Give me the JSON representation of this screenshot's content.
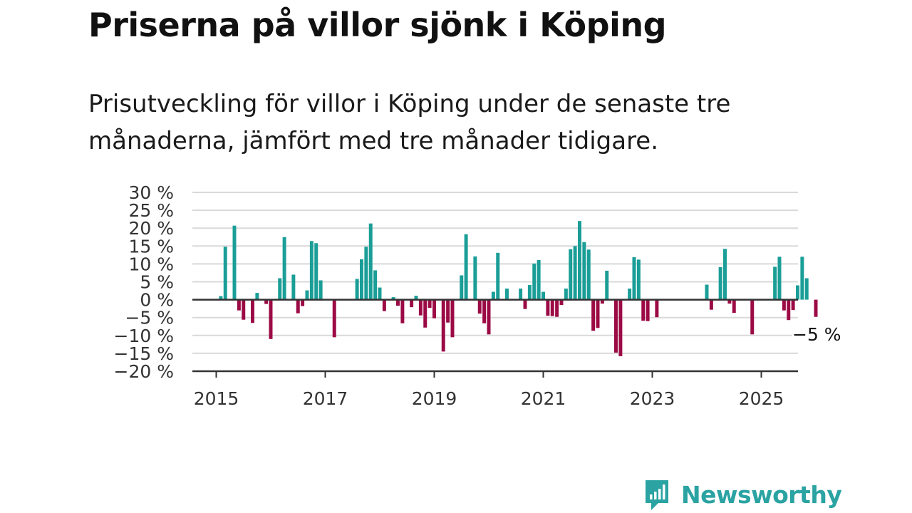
{
  "title": "Priserna på villor sjönk i Köping",
  "subtitle": "Prisutveckling för villor i Köping under de senaste tre månaderna, jämfört med tre månader tidigare.",
  "brand": {
    "name": "Newsworthy",
    "color": "#2aa3a2"
  },
  "colors": {
    "positive": "#1a9e97",
    "negative": "#9c0a45",
    "grid": "#d9d9d9",
    "axis": "#333333"
  },
  "chart_data": {
    "type": "bar",
    "x_unit": "month",
    "start_month": "2015-01",
    "ylim": [
      -20,
      30
    ],
    "y_ticks": [
      {
        "v": 30,
        "label": "30 %"
      },
      {
        "v": 25,
        "label": "25 %"
      },
      {
        "v": 20,
        "label": "20 %"
      },
      {
        "v": 15,
        "label": "15 %"
      },
      {
        "v": 10,
        "label": "10 %"
      },
      {
        "v": 5,
        "label": "5 %"
      },
      {
        "v": 0,
        "label": "0 %"
      },
      {
        "v": -5,
        "label": "−5 %"
      },
      {
        "v": -10,
        "label": "−10 %"
      },
      {
        "v": -15,
        "label": "−15 %"
      },
      {
        "v": -20,
        "label": "−20 %"
      }
    ],
    "x_ticks": [
      "2015",
      "2017",
      "2019",
      "2021",
      "2023",
      "2025"
    ],
    "grid": true,
    "annotation": "−5 %",
    "values": [
      0,
      1,
      14.8,
      0,
      20.7,
      -3,
      -5.6,
      0,
      -6.5,
      1.9,
      0,
      -1.2,
      -11,
      0,
      6,
      17.5,
      0,
      7,
      -3.8,
      -1.8,
      2.6,
      16.4,
      15.8,
      5.4,
      0,
      0,
      -10.5,
      0,
      0,
      0,
      0,
      5.8,
      11.3,
      14.8,
      21.3,
      8.2,
      3.4,
      -3.2,
      0,
      0.7,
      -1.7,
      -6.6,
      0,
      -2.1,
      1.1,
      -4.4,
      -7.8,
      -2.3,
      -5.2,
      0,
      -14.5,
      -6.4,
      -10.5,
      0,
      6.8,
      18.3,
      0,
      12.1,
      -3.9,
      -6.6,
      -9.7,
      2.2,
      13.1,
      0,
      3.1,
      0,
      0,
      3.1,
      -2.6,
      4.1,
      10.1,
      11.1,
      2.2,
      -4.5,
      -4.6,
      -4.8,
      -1.5,
      3.1,
      14.1,
      15,
      22,
      16.1,
      14,
      -8.7,
      -7.9,
      -1.1,
      8.1,
      0,
      -14.8,
      -15.8,
      0,
      3.1,
      11.9,
      11.2,
      -5.9,
      -6,
      0,
      -4.9,
      0,
      0,
      0,
      0,
      0,
      0,
      0,
      0,
      0,
      0,
      4.2,
      -2.8,
      0,
      9.1,
      14.2,
      -1.1,
      -3.7,
      0,
      0,
      0,
      -9.7,
      0,
      0,
      0,
      0,
      9.2,
      12,
      -3,
      -5.7,
      -2.9,
      4,
      12,
      6,
      0,
      -4.8
    ]
  }
}
